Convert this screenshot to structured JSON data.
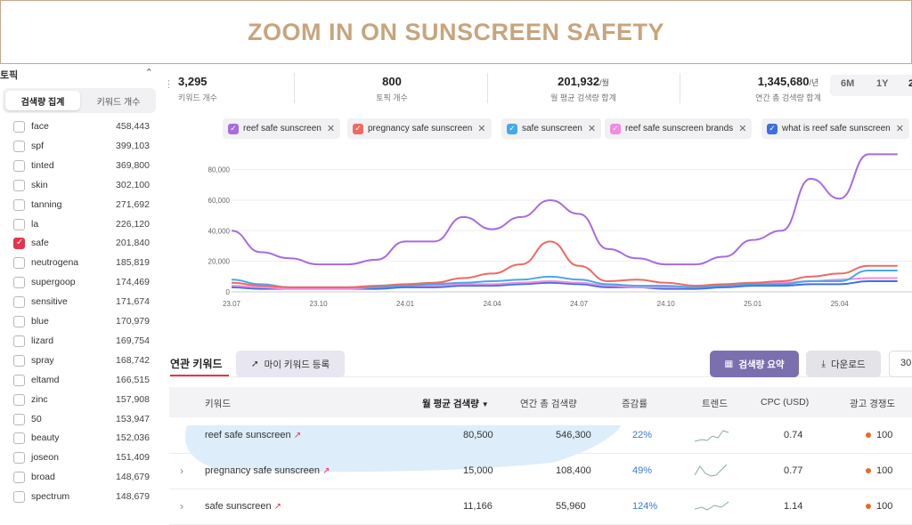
{
  "banner": {
    "title": "ZOOM IN ON SUNSCREEN SAFETY"
  },
  "sidebar": {
    "section_label": "토픽",
    "tabs": [
      "검색량 집계",
      "키워드 개수"
    ],
    "items": [
      {
        "name": "face",
        "count": "458,443",
        "checked": false
      },
      {
        "name": "spf",
        "count": "399,103",
        "checked": false
      },
      {
        "name": "tinted",
        "count": "369,800",
        "checked": false
      },
      {
        "name": "skin",
        "count": "302,100",
        "checked": false
      },
      {
        "name": "tanning",
        "count": "271,692",
        "checked": false
      },
      {
        "name": "la",
        "count": "226,120",
        "checked": false
      },
      {
        "name": "safe",
        "count": "201,840",
        "checked": true
      },
      {
        "name": "neutrogena",
        "count": "185,819",
        "checked": false
      },
      {
        "name": "supergoop",
        "count": "174,469",
        "checked": false
      },
      {
        "name": "sensitive",
        "count": "171,674",
        "checked": false
      },
      {
        "name": "blue",
        "count": "170,979",
        "checked": false
      },
      {
        "name": "lizard",
        "count": "169,754",
        "checked": false
      },
      {
        "name": "spray",
        "count": "168,742",
        "checked": false
      },
      {
        "name": "eltamd",
        "count": "166,515",
        "checked": false
      },
      {
        "name": "zinc",
        "count": "157,908",
        "checked": false
      },
      {
        "name": "50",
        "count": "153,947",
        "checked": false
      },
      {
        "name": "beauty",
        "count": "152,036",
        "checked": false
      },
      {
        "name": "joseon",
        "count": "151,409",
        "checked": false
      },
      {
        "name": "broad",
        "count": "148,679",
        "checked": false
      },
      {
        "name": "spectrum",
        "count": "148,679",
        "checked": false
      }
    ]
  },
  "stats": [
    {
      "value": "3,295",
      "unit": "",
      "label": "키워드 개수"
    },
    {
      "value": "800",
      "unit": "",
      "label": "토픽 개수"
    },
    {
      "value": "201,932",
      "unit": "/월",
      "label": "월 평균 검색량 합계"
    },
    {
      "value": "1,345,680",
      "unit": "/년",
      "label": "연간 총 검색량 합계"
    }
  ],
  "period_options": [
    "6M",
    "1Y",
    "2"
  ],
  "chips": [
    {
      "label": "reef safe sunscreen",
      "color": "#a86be0"
    },
    {
      "label": "pregnancy safe sunscreen",
      "color": "#ef6a62"
    },
    {
      "label": "safe sunscreen",
      "color": "#45a9ea"
    },
    {
      "label": "reef safe sunscreen brands",
      "color": "#f48be0"
    },
    {
      "label": "what is reef safe sunscreen",
      "color": "#3e6fe0"
    }
  ],
  "chart_data": {
    "type": "line",
    "x_ticks": [
      "23.07",
      "23.10",
      "24.01",
      "24.04",
      "24.07",
      "24.10",
      "25.01",
      "25.04"
    ],
    "y_ticks": [
      "0",
      "20,000",
      "40,000",
      "60,000",
      "80,000"
    ],
    "ylim": [
      0,
      92000
    ],
    "x_range": [
      0,
      25
    ],
    "grid": true,
    "series": [
      {
        "name": "reef safe sunscreen",
        "color": "#a86be0",
        "values": [
          40000,
          26000,
          22000,
          18000,
          18000,
          21000,
          33000,
          33000,
          49000,
          41000,
          49000,
          60000,
          51000,
          28000,
          22000,
          18000,
          18000,
          23000,
          34000,
          40000,
          74000,
          61000,
          90000,
          90000
        ]
      },
      {
        "name": "pregnancy safe sunscreen",
        "color": "#ef6a62",
        "values": [
          6000,
          4000,
          3000,
          3000,
          3000,
          4000,
          5000,
          6000,
          9000,
          12000,
          18000,
          33000,
          17000,
          7000,
          8000,
          6000,
          4000,
          5000,
          6000,
          7000,
          10000,
          12000,
          17000,
          17000
        ]
      },
      {
        "name": "safe sunscreen",
        "color": "#45a9ea",
        "values": [
          8000,
          5000,
          3000,
          3000,
          3000,
          3000,
          4000,
          5000,
          6000,
          7000,
          8000,
          10000,
          8000,
          5000,
          4000,
          4000,
          3000,
          4000,
          5000,
          5000,
          7000,
          7000,
          14000,
          14000
        ]
      },
      {
        "name": "reef safe sunscreen brands",
        "color": "#f48be0",
        "values": [
          4000,
          3000,
          2000,
          2000,
          2000,
          3000,
          4000,
          4000,
          5000,
          5000,
          6000,
          7000,
          6000,
          4000,
          3000,
          3000,
          3000,
          4000,
          5000,
          6000,
          7000,
          8000,
          9000,
          9000
        ]
      },
      {
        "name": "what is reef safe sunscreen",
        "color": "#3e6fe0",
        "values": [
          3000,
          2000,
          2000,
          2000,
          2000,
          2000,
          3000,
          3000,
          4000,
          4000,
          5000,
          6000,
          5000,
          3000,
          3000,
          2000,
          2000,
          3000,
          4000,
          4000,
          5000,
          5000,
          7000,
          7000
        ]
      }
    ]
  },
  "related": {
    "tab_label": "연관 키워드",
    "my_keyword_button": "마이 키워드 등록",
    "summary_button": "검색량 요약",
    "download_button": "다운로드",
    "count_value": "30",
    "headers": [
      "키워드",
      "월 평균 검색량",
      "연간 총 검색량",
      "증감률",
      "트렌드",
      "CPC (USD)",
      "광고 경쟁도"
    ],
    "rows": [
      {
        "keyword": "reef safe sunscreen",
        "monthly": "80,500",
        "yearly": "546,300",
        "change": "22%",
        "cpc": "0.74",
        "competition": "100",
        "expand": false
      },
      {
        "keyword": "pregnancy safe sunscreen",
        "monthly": "15,000",
        "yearly": "108,400",
        "change": "49%",
        "cpc": "0.77",
        "competition": "100",
        "expand": true
      },
      {
        "keyword": "safe sunscreen",
        "monthly": "11,166",
        "yearly": "55,960",
        "change": "124%",
        "cpc": "1.14",
        "competition": "100",
        "expand": true
      }
    ]
  }
}
